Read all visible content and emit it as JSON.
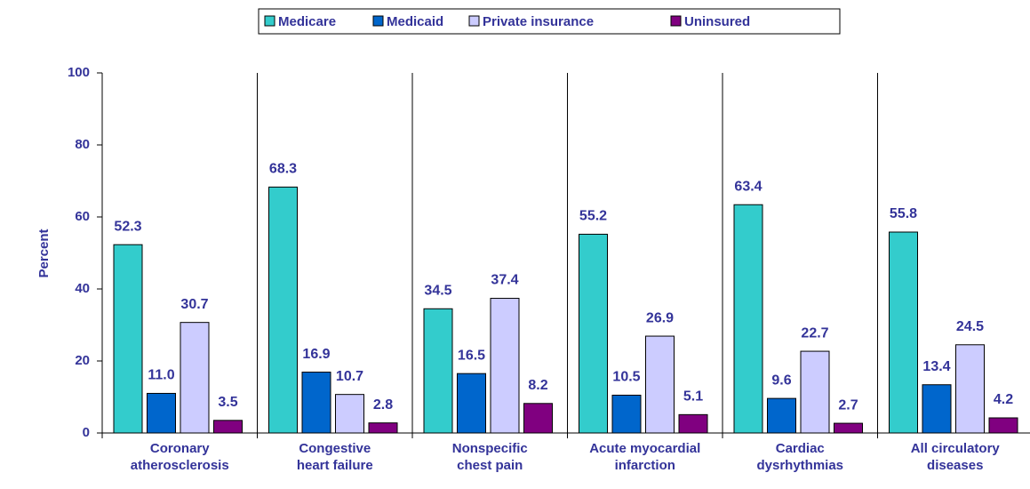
{
  "chart_data": {
    "type": "bar",
    "y_label": "Percent",
    "categories": [
      "Coronary\natherosclerosis",
      "Congestive\nheart failure",
      "Nonspecific\nchest pain",
      "Acute myocardial\ninfarction",
      "Cardiac\ndysrhythmias",
      "All circulatory\ndiseases"
    ],
    "series": [
      {
        "name": "Medicare",
        "color": "#33cccc",
        "values": [
          52.3,
          68.3,
          34.5,
          55.2,
          63.4,
          55.8
        ],
        "value_labels": [
          "52.3",
          "68.3",
          "34.5",
          "55.2",
          "63.4",
          "55.8"
        ]
      },
      {
        "name": "Medicaid",
        "color": "#0066cc",
        "values": [
          11.0,
          16.9,
          16.5,
          10.5,
          9.6,
          13.4
        ],
        "value_labels": [
          "11.0",
          "16.9",
          "16.5",
          "10.5",
          "9.6",
          "13.4"
        ]
      },
      {
        "name": "Private insurance",
        "color": "#ccccff",
        "values": [
          30.7,
          10.7,
          37.4,
          26.9,
          22.7,
          24.5
        ],
        "value_labels": [
          "30.7",
          "10.7",
          "37.4",
          "26.9",
          "22.7",
          "24.5"
        ]
      },
      {
        "name": "Uninsured",
        "color": "#800080",
        "values": [
          3.5,
          2.8,
          8.2,
          5.1,
          2.7,
          4.2
        ],
        "value_labels": [
          "3.5",
          "2.8",
          "8.2",
          "5.1",
          "2.7",
          "4.2"
        ]
      }
    ],
    "ylim": [
      0,
      100
    ],
    "yticks": [
      0,
      20,
      40,
      60,
      80,
      100
    ],
    "legend": "top"
  }
}
